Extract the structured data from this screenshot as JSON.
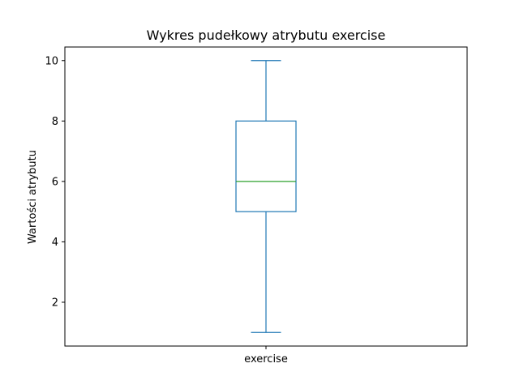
{
  "chart_data": {
    "type": "box",
    "title": "Wykres pudełkowy atrybutu exercise",
    "xlabel": "",
    "ylabel": "Wartości atrybutu",
    "categories": [
      "exercise"
    ],
    "boxes": [
      {
        "label": "exercise",
        "whisker_low": 1,
        "q1": 5,
        "median": 6,
        "q3": 8,
        "whisker_high": 10
      }
    ],
    "ylim": [
      0.55,
      10.45
    ],
    "yticks": [
      2,
      4,
      6,
      8,
      10
    ],
    "ytick_labels": [
      "2",
      "4",
      "6",
      "8",
      "10"
    ],
    "grid": false,
    "legend": "none",
    "colors": {
      "box": "#1f77b4",
      "median": "#2ca02c",
      "axes": "#000000",
      "background": "#ffffff"
    }
  }
}
